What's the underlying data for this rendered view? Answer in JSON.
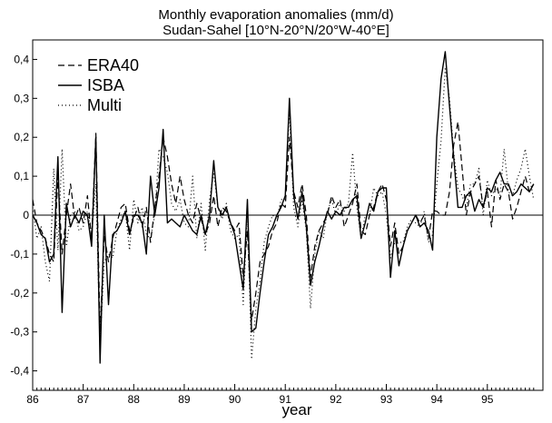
{
  "chart_data": {
    "type": "line",
    "title": "Monthly evaporation anomalies (mm/d)",
    "subtitle": "Sudan-Sahel [10°N-20°N/20°W-40°E]",
    "xlabel": "year",
    "ylabel": "",
    "xlim": [
      86.0,
      96.1
    ],
    "ylim": [
      -0.45,
      0.45
    ],
    "x_ticks": [
      "86",
      "87",
      "88",
      "89",
      "90",
      "91",
      "92",
      "93",
      "94",
      "95"
    ],
    "y_ticks": [
      "0,4",
      "0,3",
      "0,2",
      "0,1",
      "0",
      "-0,1",
      "-0,2",
      "-0,3",
      "-0,4"
    ],
    "grid": false,
    "zero_line": true,
    "legend_position": "top-left",
    "x": [
      86.0,
      86.083,
      86.167,
      86.25,
      86.333,
      86.417,
      86.5,
      86.583,
      86.667,
      86.75,
      86.833,
      86.917,
      87.0,
      87.083,
      87.167,
      87.25,
      87.333,
      87.417,
      87.5,
      87.583,
      87.667,
      87.75,
      87.833,
      87.917,
      88.0,
      88.083,
      88.167,
      88.25,
      88.333,
      88.417,
      88.5,
      88.583,
      88.667,
      88.75,
      88.833,
      88.917,
      89.0,
      89.083,
      89.167,
      89.25,
      89.333,
      89.417,
      89.5,
      89.583,
      89.667,
      89.75,
      89.833,
      89.917,
      90.0,
      90.083,
      90.167,
      90.25,
      90.333,
      90.417,
      90.5,
      90.583,
      90.667,
      90.75,
      90.833,
      90.917,
      91.0,
      91.083,
      91.167,
      91.25,
      91.333,
      91.417,
      91.5,
      91.583,
      91.667,
      91.75,
      91.833,
      91.917,
      92.0,
      92.083,
      92.167,
      92.25,
      92.333,
      92.417,
      92.5,
      92.583,
      92.667,
      92.75,
      92.833,
      92.917,
      93.0,
      93.083,
      93.167,
      93.25,
      93.333,
      93.417,
      93.5,
      93.583,
      93.667,
      93.75,
      93.833,
      93.917,
      94.0,
      94.083,
      94.167,
      94.25,
      94.333,
      94.417,
      94.5,
      94.583,
      94.667,
      94.75,
      94.833,
      94.917,
      95.0,
      95.083,
      95.167,
      95.25,
      95.333,
      95.417,
      95.5,
      95.583,
      95.667,
      95.75,
      95.833,
      95.917
    ],
    "series": [
      {
        "name": "ERA40",
        "style": "dashed",
        "values": [
          0.04,
          -0.02,
          -0.04,
          -0.06,
          -0.1,
          -0.12,
          0.1,
          -0.1,
          0.0,
          0.08,
          -0.01,
          0.02,
          -0.02,
          0.05,
          -0.06,
          0.21,
          -0.3,
          -0.05,
          -0.12,
          -0.06,
          -0.02,
          0.02,
          0.03,
          -0.04,
          -0.01,
          0.02,
          -0.03,
          0.02,
          -0.07,
          0.02,
          0.1,
          0.2,
          0.15,
          0.08,
          0.03,
          0.1,
          0.04,
          0.0,
          -0.02,
          0.03,
          -0.01,
          -0.05,
          -0.02,
          0.05,
          -0.03,
          0.02,
          0.01,
          -0.02,
          -0.04,
          -0.02,
          -0.16,
          -0.04,
          -0.27,
          -0.2,
          -0.12,
          -0.1,
          -0.08,
          -0.04,
          -0.02,
          0.03,
          0.02,
          0.2,
          0.06,
          0.02,
          0.08,
          0.0,
          -0.16,
          -0.08,
          -0.04,
          -0.02,
          0.0,
          0.05,
          0.02,
          0.04,
          -0.03,
          0.0,
          0.03,
          0.08,
          -0.04,
          -0.05,
          0.0,
          0.02,
          0.06,
          0.08,
          0.04,
          -0.08,
          -0.02,
          -0.1,
          -0.08,
          -0.04,
          -0.02,
          0.0,
          -0.02,
          0.0,
          -0.06,
          0.01,
          0.01,
          0.0,
          0.0,
          0.06,
          0.18,
          0.24,
          0.12,
          0.0,
          0.06,
          0.08,
          0.1,
          0.02,
          0.06,
          -0.03,
          0.09,
          0.04,
          0.08,
          0.06,
          -0.01,
          0.02,
          0.06,
          0.1,
          0.06,
          0.08
        ]
      },
      {
        "name": "ISBA",
        "style": "solid",
        "values": [
          0.0,
          -0.02,
          -0.05,
          -0.06,
          -0.12,
          -0.1,
          0.15,
          -0.25,
          0.03,
          -0.03,
          0.0,
          -0.02,
          0.01,
          0.0,
          -0.08,
          0.2,
          -0.38,
          0.0,
          -0.23,
          -0.05,
          -0.04,
          -0.02,
          0.01,
          -0.05,
          0.0,
          0.0,
          -0.02,
          -0.1,
          0.1,
          0.0,
          0.07,
          0.22,
          -0.02,
          -0.01,
          -0.02,
          -0.03,
          0.0,
          -0.02,
          -0.04,
          -0.05,
          0.0,
          -0.05,
          0.0,
          0.14,
          0.02,
          0.0,
          0.02,
          -0.02,
          -0.05,
          -0.12,
          -0.19,
          0.04,
          -0.3,
          -0.29,
          -0.2,
          -0.12,
          -0.05,
          -0.03,
          0.0,
          0.02,
          0.05,
          0.3,
          0.05,
          -0.01,
          0.06,
          -0.03,
          -0.18,
          -0.12,
          -0.08,
          -0.03,
          0.01,
          -0.01,
          0.01,
          0.0,
          0.02,
          0.02,
          0.04,
          0.05,
          -0.06,
          -0.02,
          0.03,
          0.01,
          0.06,
          0.07,
          0.07,
          -0.16,
          -0.04,
          -0.13,
          -0.08,
          -0.04,
          -0.02,
          0.0,
          -0.03,
          -0.02,
          -0.04,
          -0.09,
          0.2,
          0.35,
          0.42,
          0.28,
          0.15,
          0.02,
          0.02,
          0.05,
          0.06,
          0.01,
          0.04,
          0.02,
          0.07,
          0.06,
          0.09,
          0.11,
          0.08,
          0.08,
          0.05,
          0.06,
          0.08,
          0.07,
          0.06,
          0.08
        ]
      },
      {
        "name": "Multi",
        "style": "dotted",
        "values": [
          0.02,
          -0.06,
          -0.03,
          -0.12,
          -0.17,
          0.12,
          -0.09,
          0.17,
          -0.08,
          0.0,
          0.01,
          -0.04,
          -0.03,
          0.01,
          -0.05,
          0.08,
          -0.33,
          -0.12,
          -0.1,
          -0.11,
          -0.04,
          -0.01,
          0.01,
          -0.09,
          0.04,
          -0.02,
          0.02,
          -0.05,
          -0.06,
          0.0,
          0.17,
          0.15,
          0.11,
          0.03,
          0.01,
          0.04,
          -0.02,
          -0.03,
          0.1,
          -0.06,
          0.03,
          -0.09,
          0.04,
          0.11,
          0.02,
          -0.01,
          0.03,
          -0.04,
          -0.06,
          -0.05,
          -0.23,
          0.01,
          -0.37,
          -0.24,
          -0.17,
          -0.07,
          -0.03,
          0.0,
          -0.01,
          0.04,
          0.04,
          0.27,
          0.02,
          -0.03,
          0.04,
          -0.04,
          -0.24,
          -0.1,
          -0.04,
          -0.06,
          0.01,
          0.04,
          0.0,
          0.03,
          0.01,
          0.03,
          0.16,
          0.02,
          -0.06,
          0.0,
          0.0,
          0.07,
          0.05,
          0.06,
          0.0,
          -0.11,
          -0.07,
          -0.07,
          -0.07,
          -0.03,
          -0.01,
          -0.02,
          -0.03,
          0.01,
          -0.07,
          -0.05,
          0.08,
          0.19,
          0.38,
          0.3,
          0.16,
          0.07,
          0.05,
          0.02,
          0.08,
          0.08,
          0.12,
          0.0,
          0.09,
          0.05,
          0.07,
          0.05,
          0.17,
          0.06,
          0.05,
          0.09,
          0.12,
          0.17,
          0.1,
          0.04
        ]
      }
    ]
  }
}
